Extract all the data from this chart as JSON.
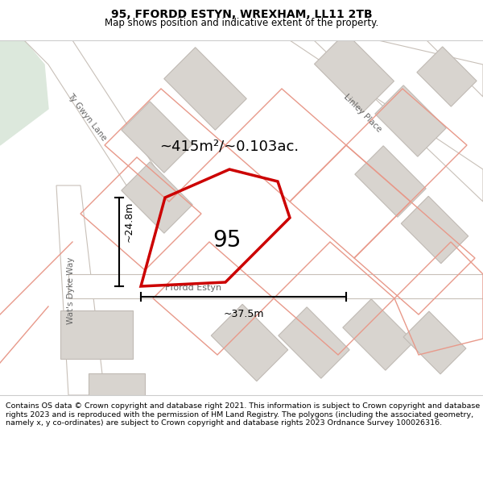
{
  "title_line1": "95, FFORDD ESTYN, WREXHAM, LL11 2TB",
  "title_line2": "Map shows position and indicative extent of the property.",
  "footer_text": "Contains OS data © Crown copyright and database right 2021. This information is subject to Crown copyright and database rights 2023 and is reproduced with the permission of HM Land Registry. The polygons (including the associated geometry, namely x, y co-ordinates) are subject to Crown copyright and database rights 2023 Ordnance Survey 100026316.",
  "map_bg": "#f2f0ed",
  "road_fill": "#ffffff",
  "road_stroke": "#c8c0b8",
  "building_fill": "#d8d4cf",
  "building_stroke": "#c0bab4",
  "pink_stroke": "#e8998a",
  "green_fill": "#dce8dc",
  "subject_stroke": "#cc0000",
  "subject_lw": 2.5,
  "area_text": "~415m²/~0.103ac.",
  "number_text": "95",
  "dim_height_label": "~24.8m",
  "dim_width_label": "~37.5m",
  "road_label_ffordd": "Ffordd Estyn",
  "road_label_wats": "Wat's Dyke Way",
  "road_label_ty": "Ty Gwyn Lane",
  "road_label_linley": "Linley Place",
  "figsize": [
    6.0,
    6.25
  ],
  "dpi": 100
}
